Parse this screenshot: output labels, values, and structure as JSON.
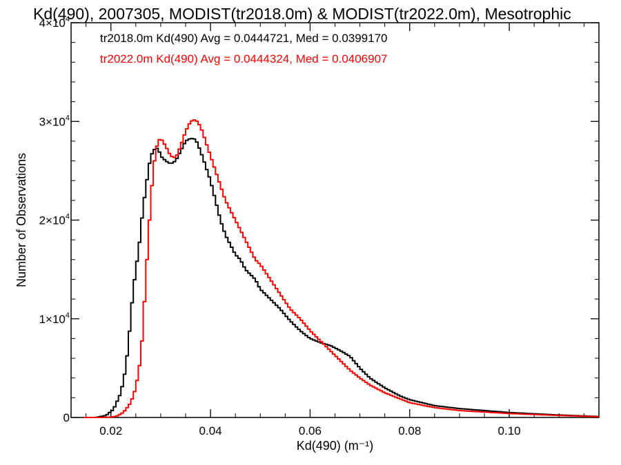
{
  "chart_data": {
    "type": "line",
    "step": true,
    "title": "Kd(490), 2007305, MODIST(tr2018.0m) & MODIST(tr2022.0m), Mesotrophic",
    "xlabel": "Kd(490) (m⁻¹)",
    "ylabel": "Number of Observations",
    "xlim": [
      0.012,
      0.118
    ],
    "ylim": [
      0,
      40000
    ],
    "x_ticks": [
      {
        "value": 0.02,
        "label": "0.02"
      },
      {
        "value": 0.04,
        "label": "0.04"
      },
      {
        "value": 0.06,
        "label": "0.06"
      },
      {
        "value": 0.08,
        "label": "0.08"
      },
      {
        "value": 0.1,
        "label": "0.10"
      }
    ],
    "y_ticks": [
      {
        "value": 0,
        "label": "0"
      },
      {
        "value": 10000,
        "label": "1×10",
        "exp": "4"
      },
      {
        "value": 20000,
        "label": "2×10",
        "exp": "4"
      },
      {
        "value": 30000,
        "label": "3×10",
        "exp": "4"
      },
      {
        "value": 40000,
        "label": "4×10",
        "exp": "4"
      }
    ],
    "grid": false,
    "legend_position": "top-left",
    "series": [
      {
        "name": "tr2018.0m",
        "color": "#000000",
        "legend": "tr2018.0m Kd(490) Avg = 0.0444721, Med = 0.0399170",
        "points": [
          [
            0.0145,
            0
          ],
          [
            0.017,
            0
          ],
          [
            0.019,
            200
          ],
          [
            0.0205,
            800
          ],
          [
            0.022,
            2500
          ],
          [
            0.023,
            5000
          ],
          [
            0.0238,
            9000
          ],
          [
            0.0244,
            12500
          ],
          [
            0.025,
            15000
          ],
          [
            0.0256,
            17000
          ],
          [
            0.0262,
            20000
          ],
          [
            0.0268,
            22500
          ],
          [
            0.0275,
            25000
          ],
          [
            0.028,
            26500
          ],
          [
            0.0288,
            27200
          ],
          [
            0.0295,
            27300
          ],
          [
            0.03,
            26500
          ],
          [
            0.031,
            26000
          ],
          [
            0.032,
            25700
          ],
          [
            0.033,
            26000
          ],
          [
            0.034,
            27000
          ],
          [
            0.035,
            28000
          ],
          [
            0.036,
            28300
          ],
          [
            0.037,
            28200
          ],
          [
            0.038,
            27000
          ],
          [
            0.039,
            25500
          ],
          [
            0.04,
            24000
          ],
          [
            0.041,
            22000
          ],
          [
            0.042,
            20000
          ],
          [
            0.043,
            18500
          ],
          [
            0.044,
            17500
          ],
          [
            0.045,
            16500
          ],
          [
            0.046,
            16000
          ],
          [
            0.047,
            15000
          ],
          [
            0.048,
            14500
          ],
          [
            0.049,
            14000
          ],
          [
            0.05,
            13000
          ],
          [
            0.052,
            12000
          ],
          [
            0.054,
            11000
          ],
          [
            0.056,
            9800
          ],
          [
            0.058,
            8800
          ],
          [
            0.06,
            8000
          ],
          [
            0.062,
            7600
          ],
          [
            0.064,
            7300
          ],
          [
            0.066,
            6800
          ],
          [
            0.068,
            6200
          ],
          [
            0.07,
            5000
          ],
          [
            0.072,
            4000
          ],
          [
            0.075,
            3000
          ],
          [
            0.078,
            2200
          ],
          [
            0.08,
            1800
          ],
          [
            0.085,
            1200
          ],
          [
            0.09,
            900
          ],
          [
            0.1,
            500
          ],
          [
            0.11,
            250
          ],
          [
            0.118,
            100
          ]
        ]
      },
      {
        "name": "tr2022.0m",
        "color": "#ff0000",
        "legend": "tr2022.0m Kd(490) Avg = 0.0444324, Med = 0.0406907",
        "points": [
          [
            0.0145,
            0
          ],
          [
            0.019,
            0
          ],
          [
            0.021,
            100
          ],
          [
            0.0225,
            500
          ],
          [
            0.024,
            1500
          ],
          [
            0.025,
            3000
          ],
          [
            0.026,
            6000
          ],
          [
            0.0265,
            9500
          ],
          [
            0.027,
            14000
          ],
          [
            0.0275,
            18000
          ],
          [
            0.028,
            22000
          ],
          [
            0.0285,
            25000
          ],
          [
            0.029,
            27000
          ],
          [
            0.0295,
            28000
          ],
          [
            0.03,
            28300
          ],
          [
            0.031,
            27500
          ],
          [
            0.032,
            26500
          ],
          [
            0.033,
            26300
          ],
          [
            0.034,
            27500
          ],
          [
            0.035,
            29000
          ],
          [
            0.036,
            30000
          ],
          [
            0.037,
            30200
          ],
          [
            0.038,
            29500
          ],
          [
            0.039,
            28000
          ],
          [
            0.04,
            26500
          ],
          [
            0.041,
            25000
          ],
          [
            0.042,
            23500
          ],
          [
            0.043,
            22000
          ],
          [
            0.044,
            21000
          ],
          [
            0.045,
            20000
          ],
          [
            0.046,
            19000
          ],
          [
            0.047,
            18000
          ],
          [
            0.048,
            17000
          ],
          [
            0.049,
            16000
          ],
          [
            0.05,
            15500
          ],
          [
            0.052,
            14000
          ],
          [
            0.054,
            12500
          ],
          [
            0.056,
            11000
          ],
          [
            0.058,
            10000
          ],
          [
            0.06,
            8800
          ],
          [
            0.062,
            7800
          ],
          [
            0.064,
            6800
          ],
          [
            0.066,
            5800
          ],
          [
            0.068,
            4800
          ],
          [
            0.07,
            4000
          ],
          [
            0.072,
            3300
          ],
          [
            0.075,
            2500
          ],
          [
            0.078,
            1900
          ],
          [
            0.08,
            1500
          ],
          [
            0.085,
            1000
          ],
          [
            0.09,
            700
          ],
          [
            0.1,
            400
          ],
          [
            0.11,
            200
          ],
          [
            0.118,
            80
          ]
        ]
      }
    ]
  }
}
